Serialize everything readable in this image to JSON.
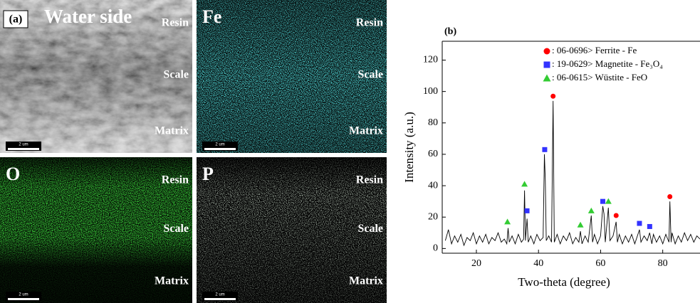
{
  "panels": [
    {
      "label": "(a)",
      "title": "Water side",
      "regions": [
        "Resin",
        "Scale",
        "Matrix"
      ],
      "scale_bar": "2 um"
    },
    {
      "label": "Fe",
      "regions": [
        "Resin",
        "Scale",
        "Matrix"
      ],
      "scale_bar": "2 um"
    },
    {
      "label": "O",
      "regions": [
        "Resin",
        "Scale",
        "Matrix"
      ],
      "scale_bar": "2 um"
    },
    {
      "label": "P",
      "regions": [
        "Resin",
        "Scale",
        "Matrix"
      ],
      "scale_bar": "2 um"
    }
  ],
  "chart_data": {
    "type": "line",
    "title": "(b)",
    "x_label": "Two-theta (degree)",
    "y_label": "Intensity (a.u.)",
    "xlim": [
      9,
      92
    ],
    "xticks": [
      20,
      40,
      60,
      80
    ],
    "ylim": [
      -3,
      132
    ],
    "yticks": [
      0,
      20,
      40,
      60,
      80,
      100,
      120
    ],
    "trace": {
      "color": "#000000",
      "x": [
        10,
        11,
        12,
        13,
        14,
        15,
        16,
        17,
        18,
        19,
        20,
        21,
        22,
        23,
        24,
        25,
        26,
        27,
        28,
        29,
        29.8,
        30.2,
        30.6,
        31.5,
        32.5,
        33.5,
        34.5,
        35.2,
        35.5,
        35.8,
        36.3,
        36.7,
        37.5,
        38.5,
        39.5,
        40.5,
        41.5,
        41.9,
        42.2,
        42.5,
        43.3,
        44.2,
        44.7,
        45.1,
        46,
        47,
        48,
        49,
        50,
        51,
        52,
        53,
        53.5,
        54,
        55,
        56,
        57,
        57.4,
        58,
        59,
        60,
        60.7,
        61.1,
        61.5,
        62.5,
        63,
        64,
        65,
        65.4,
        66,
        67,
        68,
        69,
        70,
        71,
        72.5,
        73,
        74,
        75,
        75.8,
        76.5,
        77,
        78,
        79,
        80,
        81,
        82,
        82.3,
        82.7,
        83,
        84,
        85,
        86,
        87,
        88,
        89,
        90,
        91,
        92
      ],
      "values": [
        5,
        12,
        3,
        8,
        4,
        9,
        2,
        7,
        5,
        10,
        3,
        8,
        4,
        9,
        3,
        7,
        5,
        10,
        4,
        6,
        3,
        13,
        4,
        8,
        3,
        9,
        4,
        6,
        37,
        5,
        19,
        4,
        8,
        3,
        9,
        5,
        7,
        60,
        43,
        5,
        8,
        4,
        94,
        4,
        9,
        3,
        8,
        5,
        10,
        3,
        7,
        4,
        11,
        3,
        8,
        4,
        21,
        4,
        9,
        3,
        8,
        27,
        22,
        4,
        26,
        5,
        8,
        17,
        4,
        9,
        3,
        8,
        4,
        9,
        3,
        12,
        4,
        8,
        5,
        10,
        3,
        9,
        4,
        8,
        3,
        9,
        4,
        30,
        4,
        10,
        3,
        8,
        4,
        10,
        5,
        9,
        4,
        8,
        6
      ]
    },
    "series": [
      {
        "name": ": 06-0696> Ferrite  - Fe",
        "color": "#ff0000",
        "marker": "circle",
        "x": [
          44.7,
          65,
          82.3
        ],
        "values": [
          97,
          21,
          33
        ]
      },
      {
        "name": ": 19-0629> Magnetite  - Fe₃O₄",
        "color": "#3333ff",
        "marker": "square",
        "x": [
          36.3,
          42,
          60.7,
          72.5,
          75.8
        ],
        "values": [
          24,
          63,
          30,
          16,
          14
        ]
      },
      {
        "name": ": 06-0615> Wüstite - FeO",
        "color": "#33cc33",
        "marker": "triangle",
        "x": [
          30,
          35.5,
          53.5,
          57,
          62.5
        ],
        "values": [
          17,
          41,
          15,
          24,
          30
        ]
      }
    ]
  }
}
